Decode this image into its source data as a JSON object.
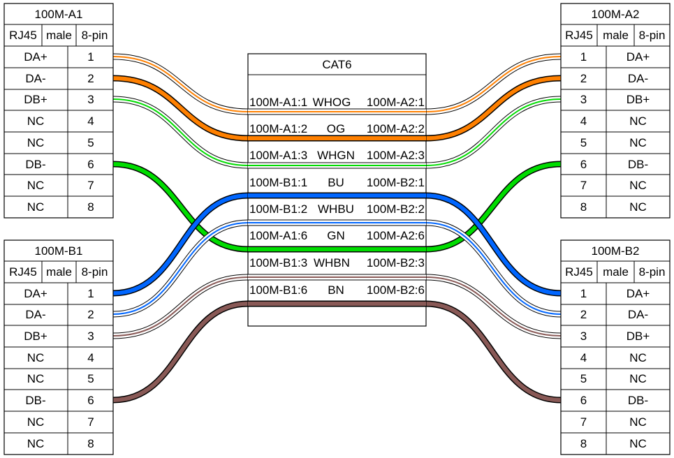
{
  "connectors": {
    "a1": {
      "title": "100M-A1",
      "type": "RJ45",
      "gender": "male",
      "pincount": "8-pin",
      "pins": [
        {
          "num": "1",
          "label": "DA+"
        },
        {
          "num": "2",
          "label": "DA-"
        },
        {
          "num": "3",
          "label": "DB+"
        },
        {
          "num": "4",
          "label": "NC"
        },
        {
          "num": "5",
          "label": "NC"
        },
        {
          "num": "6",
          "label": "DB-"
        },
        {
          "num": "7",
          "label": "NC"
        },
        {
          "num": "8",
          "label": "NC"
        }
      ]
    },
    "b1": {
      "title": "100M-B1",
      "type": "RJ45",
      "gender": "male",
      "pincount": "8-pin",
      "pins": [
        {
          "num": "1",
          "label": "DA+"
        },
        {
          "num": "2",
          "label": "DA-"
        },
        {
          "num": "3",
          "label": "DB+"
        },
        {
          "num": "4",
          "label": "NC"
        },
        {
          "num": "5",
          "label": "NC"
        },
        {
          "num": "6",
          "label": "DB-"
        },
        {
          "num": "7",
          "label": "NC"
        },
        {
          "num": "8",
          "label": "NC"
        }
      ]
    },
    "a2": {
      "title": "100M-A2",
      "type": "RJ45",
      "gender": "male",
      "pincount": "8-pin",
      "pins": [
        {
          "num": "1",
          "label": "DA+"
        },
        {
          "num": "2",
          "label": "DA-"
        },
        {
          "num": "3",
          "label": "DB+"
        },
        {
          "num": "4",
          "label": "NC"
        },
        {
          "num": "5",
          "label": "NC"
        },
        {
          "num": "6",
          "label": "DB-"
        },
        {
          "num": "7",
          "label": "NC"
        },
        {
          "num": "8",
          "label": "NC"
        }
      ]
    },
    "b2": {
      "title": "100M-B2",
      "type": "RJ45",
      "gender": "male",
      "pincount": "8-pin",
      "pins": [
        {
          "num": "1",
          "label": "DA+"
        },
        {
          "num": "2",
          "label": "DA-"
        },
        {
          "num": "3",
          "label": "DB+"
        },
        {
          "num": "4",
          "label": "NC"
        },
        {
          "num": "5",
          "label": "NC"
        },
        {
          "num": "6",
          "label": "DB-"
        },
        {
          "num": "7",
          "label": "NC"
        },
        {
          "num": "8",
          "label": "NC"
        }
      ]
    }
  },
  "cable": {
    "title": "CAT6",
    "wires": [
      {
        "from": "100M-A1:1",
        "color": "WHOG",
        "to": "100M-A2:1"
      },
      {
        "from": "100M-A1:2",
        "color": "OG",
        "to": "100M-A2:2"
      },
      {
        "from": "100M-A1:3",
        "color": "WHGN",
        "to": "100M-A2:3"
      },
      {
        "from": "100M-B1:1",
        "color": "BU",
        "to": "100M-B2:1"
      },
      {
        "from": "100M-B1:2",
        "color": "WHBU",
        "to": "100M-B2:2"
      },
      {
        "from": "100M-A1:6",
        "color": "GN",
        "to": "100M-A2:6"
      },
      {
        "from": "100M-B1:3",
        "color": "WHBN",
        "to": "100M-B2:3"
      },
      {
        "from": "100M-B1:6",
        "color": "BN",
        "to": "100M-B2:6"
      }
    ]
  },
  "colors": {
    "orange": "#ff8000",
    "green": "#00dd00",
    "blue": "#0066ff",
    "brown": "#895956",
    "outline": "#000000"
  }
}
